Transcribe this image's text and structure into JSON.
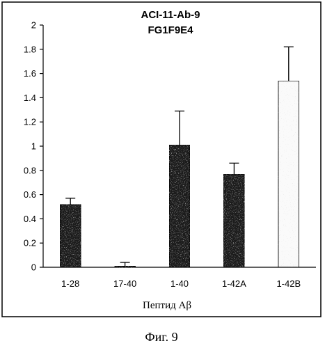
{
  "figure": {
    "caption": "Фиг. 9"
  },
  "chart_data": {
    "type": "bar",
    "title": "ACI-11-Ab-9",
    "subtitle": "FG1F9E4",
    "xlabel": "Пептид Aβ",
    "ylabel": "",
    "categories": [
      "1-28",
      "17-40",
      "1-40",
      "1-42A",
      "1-42B"
    ],
    "values": [
      0.52,
      0.01,
      1.01,
      0.77,
      1.54
    ],
    "errors": [
      0.05,
      0.03,
      0.28,
      0.09,
      0.28
    ],
    "bar_fills": [
      "dark",
      "dark",
      "dark",
      "dark",
      "light"
    ],
    "ylim": [
      0,
      2
    ],
    "yticks": [
      0,
      0.2,
      0.4,
      0.6,
      0.8,
      1,
      1.2,
      1.4,
      1.6,
      1.8,
      2
    ],
    "ytick_labels": [
      "0",
      "0.2",
      "0.4",
      "0.6",
      "0.8",
      "1",
      "1.2",
      "1.4",
      "1.6",
      "1.8",
      "2"
    ],
    "grid": false,
    "legend": "none"
  }
}
